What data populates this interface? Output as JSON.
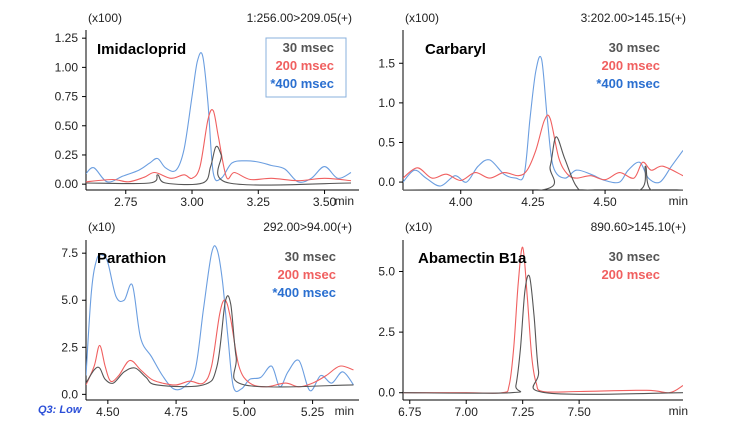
{
  "footer_note": "Q3: Low",
  "colors": {
    "s30": "#555555",
    "s200": "#f06060",
    "s400": "#6b9ee0",
    "s400_text": "#2a6fd0"
  },
  "chart_data": [
    {
      "type": "line",
      "title": "Imidacloprid",
      "scale_label": "(x100)",
      "transition": "1:256.00>209.05(+)",
      "xlabel": "min",
      "xlim": [
        2.6,
        3.63
      ],
      "ylim": [
        -0.05,
        1.32
      ],
      "xticks": [
        2.75,
        3.0,
        3.25,
        3.5
      ],
      "xtick_labels": [
        "2.75",
        "3.00",
        "3.25",
        "3.50"
      ],
      "yticks": [
        0.0,
        0.25,
        0.5,
        0.75,
        1.0,
        1.25
      ],
      "ytick_labels": [
        "0.00",
        "0.25",
        "0.50",
        "0.75",
        "1.00",
        "1.25"
      ],
      "legend_box": true,
      "legend": [
        "30 msec",
        "200 msec",
        "*400 msec"
      ],
      "series": [
        {
          "name": "30 msec",
          "color": "#555555",
          "x": [
            2.6,
            2.84,
            2.87,
            2.9,
            3.04,
            3.07,
            3.09,
            3.11,
            3.14,
            3.6
          ],
          "y": [
            0.01,
            0.01,
            0.08,
            0.01,
            0.01,
            0.15,
            0.32,
            0.25,
            0.01,
            0.01
          ]
        },
        {
          "name": "200 msec",
          "color": "#f06060",
          "x": [
            2.6,
            2.7,
            2.76,
            2.82,
            2.86,
            2.92,
            2.97,
            3.0,
            3.03,
            3.06,
            3.08,
            3.1,
            3.13,
            3.16,
            3.22,
            3.3,
            3.4,
            3.5,
            3.6
          ],
          "y": [
            0.02,
            0.04,
            0.02,
            0.06,
            0.1,
            0.05,
            0.08,
            0.05,
            0.15,
            0.55,
            0.63,
            0.4,
            0.06,
            0.1,
            0.04,
            0.05,
            0.03,
            0.05,
            0.03
          ]
        },
        {
          "name": "*400 msec",
          "color": "#6b9ee0",
          "x": [
            2.6,
            2.63,
            2.68,
            2.74,
            2.8,
            2.84,
            2.87,
            2.9,
            2.94,
            2.97,
            3.0,
            3.02,
            3.04,
            3.06,
            3.08,
            3.11,
            3.15,
            3.2,
            3.25,
            3.3,
            3.35,
            3.4,
            3.45,
            3.5,
            3.55,
            3.6
          ],
          "y": [
            0.09,
            0.14,
            0.02,
            0.07,
            0.12,
            0.18,
            0.22,
            0.14,
            0.12,
            0.3,
            0.75,
            1.05,
            1.1,
            0.7,
            0.1,
            0.05,
            0.18,
            0.2,
            0.19,
            0.16,
            0.13,
            0.02,
            0.05,
            0.15,
            0.05,
            0.1
          ]
        }
      ]
    },
    {
      "type": "line",
      "title": "Carbaryl",
      "scale_label": "(x100)",
      "transition": "3:202.00>145.15(+)",
      "xlabel": "min",
      "xlim": [
        3.8,
        4.77
      ],
      "ylim": [
        -0.1,
        1.92
      ],
      "xticks": [
        4.0,
        4.25,
        4.5
      ],
      "xtick_labels": [
        "4.00",
        "4.25",
        "4.50"
      ],
      "yticks": [
        0.0,
        0.5,
        1.0,
        1.5
      ],
      "ytick_labels": [
        "0.0",
        "0.5",
        "1.0",
        "1.5"
      ],
      "legend_box": false,
      "legend": [
        "30 msec",
        "200 msec",
        "*400 msec"
      ],
      "series": [
        {
          "name": "30 msec",
          "color": "#555555",
          "x": [
            3.8,
            4.28,
            4.31,
            4.33,
            4.36,
            4.4,
            4.44,
            4.62,
            4.64,
            4.66,
            4.77
          ],
          "y": [
            -0.1,
            -0.1,
            0.2,
            0.57,
            0.3,
            -0.05,
            -0.1,
            -0.1,
            0.2,
            -0.1,
            -0.1
          ]
        },
        {
          "name": "200 msec",
          "color": "#f06060",
          "x": [
            3.8,
            3.85,
            3.9,
            3.95,
            4.0,
            4.05,
            4.1,
            4.15,
            4.2,
            4.23,
            4.26,
            4.29,
            4.31,
            4.34,
            4.37,
            4.4,
            4.45,
            4.5,
            4.55,
            4.6,
            4.63,
            4.66,
            4.7,
            4.77
          ],
          "y": [
            0.05,
            0.18,
            0.05,
            0.1,
            0.02,
            0.12,
            0.05,
            0.12,
            0.08,
            0.15,
            0.4,
            0.78,
            0.8,
            0.3,
            0.1,
            0.05,
            0.08,
            0.03,
            0.12,
            0.05,
            0.25,
            0.15,
            0.2,
            0.08
          ]
        },
        {
          "name": "*400 msec",
          "color": "#6b9ee0",
          "x": [
            3.8,
            3.84,
            3.88,
            3.93,
            3.98,
            4.02,
            4.06,
            4.1,
            4.15,
            4.19,
            4.22,
            4.24,
            4.26,
            4.28,
            4.3,
            4.32,
            4.36,
            4.4,
            4.45,
            4.5,
            4.55,
            4.58,
            4.62,
            4.65,
            4.69,
            4.73,
            4.77
          ],
          "y": [
            0.0,
            0.15,
            0.05,
            -0.05,
            0.08,
            0.0,
            0.2,
            0.28,
            0.1,
            0.05,
            0.1,
            0.8,
            1.4,
            1.55,
            0.8,
            0.2,
            0.05,
            0.15,
            0.1,
            0.02,
            0.0,
            0.15,
            0.25,
            0.05,
            0.0,
            0.2,
            0.4
          ]
        }
      ]
    },
    {
      "type": "line",
      "title": "Parathion",
      "scale_label": "(x10)",
      "transition": "292.00>94.00(+)",
      "xlabel": "min",
      "xlim": [
        4.42,
        5.42
      ],
      "ylim": [
        -0.3,
        8.2
      ],
      "xticks": [
        4.5,
        4.75,
        5.0,
        5.25
      ],
      "xtick_labels": [
        "4.50",
        "4.75",
        "5.00",
        "5.25"
      ],
      "yticks": [
        0.0,
        2.5,
        5.0,
        7.5
      ],
      "ytick_labels": [
        "0.0",
        "2.5",
        "5.0",
        "7.5"
      ],
      "legend_box": false,
      "legend": [
        "30 msec",
        "200 msec",
        "*400 msec"
      ],
      "series": [
        {
          "name": "30 msec",
          "color": "#555555",
          "x": [
            4.42,
            4.45,
            4.47,
            4.49,
            4.52,
            4.56,
            4.6,
            4.64,
            4.68,
            4.85,
            4.9,
            4.93,
            4.95,
            4.97,
            5.0,
            5.4
          ],
          "y": [
            0.6,
            1.3,
            1.4,
            0.8,
            0.6,
            1.2,
            1.4,
            0.9,
            0.5,
            0.5,
            1.5,
            4.9,
            4.8,
            2.0,
            0.5,
            0.5
          ]
        },
        {
          "name": "200 msec",
          "color": "#f06060",
          "x": [
            4.42,
            4.45,
            4.47,
            4.49,
            4.51,
            4.54,
            4.58,
            4.62,
            4.66,
            4.7,
            4.75,
            4.8,
            4.85,
            4.88,
            4.91,
            4.93,
            4.95,
            4.98,
            5.02,
            5.08,
            5.15,
            5.2,
            5.25,
            5.3,
            5.35,
            5.4
          ],
          "y": [
            0.5,
            1.5,
            2.6,
            1.5,
            0.7,
            1.0,
            1.8,
            1.3,
            0.8,
            0.6,
            0.5,
            0.7,
            0.6,
            1.5,
            4.3,
            5.0,
            4.0,
            1.5,
            0.6,
            0.4,
            0.6,
            0.4,
            0.6,
            1.0,
            1.5,
            1.3
          ]
        },
        {
          "name": "*400 msec",
          "color": "#6b9ee0",
          "x": [
            4.42,
            4.44,
            4.46,
            4.48,
            4.5,
            4.53,
            4.56,
            4.59,
            4.62,
            4.66,
            4.7,
            4.74,
            4.78,
            4.82,
            4.85,
            4.88,
            4.9,
            4.92,
            4.94,
            4.96,
            4.99,
            5.02,
            5.06,
            5.1,
            5.13,
            5.16,
            5.2,
            5.24,
            5.28,
            5.32,
            5.36,
            5.4
          ],
          "y": [
            1.0,
            5.5,
            7.2,
            7.4,
            7.0,
            5.2,
            5.0,
            5.8,
            3.0,
            2.0,
            1.0,
            0.3,
            0.4,
            1.3,
            4.5,
            7.5,
            7.7,
            6.0,
            3.0,
            0.4,
            0.3,
            0.8,
            0.9,
            1.5,
            0.4,
            1.2,
            1.8,
            0.2,
            1.0,
            0.6,
            1.2,
            0.5
          ]
        }
      ]
    },
    {
      "type": "line",
      "title": "Abamectin B1a",
      "scale_label": "(x10)",
      "transition": "890.60>145.10(+)",
      "xlabel": "min",
      "xlim": [
        6.72,
        7.96
      ],
      "ylim": [
        -0.3,
        6.3
      ],
      "xticks": [
        6.75,
        7.0,
        7.25,
        7.5
      ],
      "xtick_labels": [
        "6.75",
        "7.00",
        "7.25",
        "7.50"
      ],
      "yticks": [
        0.0,
        2.5,
        5.0
      ],
      "ytick_labels": [
        "0.0",
        "2.5",
        "5.0"
      ],
      "legend_box": false,
      "legend": [
        "30 msec",
        "200 msec"
      ],
      "series": [
        {
          "name": "30 msec",
          "color": "#555555",
          "x": [
            6.72,
            7.2,
            7.22,
            7.24,
            7.26,
            7.28,
            7.3,
            7.32,
            7.35,
            7.96
          ],
          "y": [
            0.0,
            0.0,
            0.3,
            1.8,
            4.2,
            4.8,
            3.2,
            0.9,
            0.0,
            0.0
          ]
        },
        {
          "name": "200 msec",
          "color": "#f06060",
          "x": [
            6.72,
            7.0,
            7.16,
            7.19,
            7.21,
            7.23,
            7.25,
            7.27,
            7.29,
            7.31,
            7.34,
            7.5,
            7.8,
            7.9,
            7.96
          ],
          "y": [
            0.0,
            0.0,
            0.0,
            0.3,
            1.8,
            4.5,
            6.0,
            4.0,
            1.5,
            0.4,
            0.05,
            0.05,
            0.1,
            0.0,
            0.3
          ]
        }
      ]
    }
  ]
}
